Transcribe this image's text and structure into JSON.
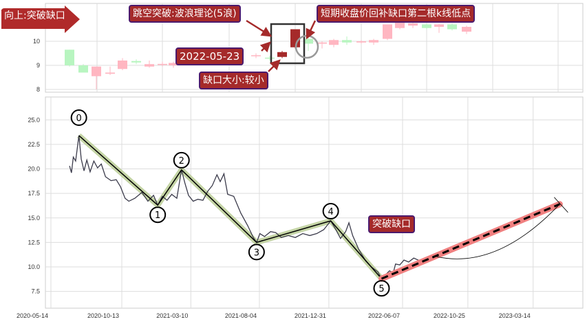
{
  "chart_data": [
    {
      "type": "candlestick",
      "ylim": [
        7.9,
        11.6
      ],
      "yticks": [
        8,
        9,
        10
      ],
      "grid": true,
      "candles": [
        {
          "o": 9.65,
          "h": 9.65,
          "l": 8.95,
          "c": 9.0
        },
        {
          "o": 9.0,
          "h": 9.05,
          "l": 8.7,
          "c": 8.7
        },
        {
          "o": 8.55,
          "h": 8.95,
          "l": 8.0,
          "c": 8.95
        },
        {
          "o": 8.65,
          "h": 8.95,
          "l": 8.6,
          "c": 8.7
        },
        {
          "o": 8.85,
          "h": 9.3,
          "l": 8.8,
          "c": 9.2
        },
        {
          "o": 9.18,
          "h": 9.25,
          "l": 9.05,
          "c": 9.12
        },
        {
          "o": 8.95,
          "h": 9.2,
          "l": 8.9,
          "c": 9.05
        },
        {
          "o": 9.05,
          "h": 9.15,
          "l": 8.95,
          "c": 9.06
        },
        {
          "o": 9.0,
          "h": 9.15,
          "l": 8.9,
          "c": 9.1
        },
        {
          "o": 9.38,
          "h": 9.5,
          "l": 9.3,
          "c": 9.42
        },
        {
          "o": 9.32,
          "h": 9.4,
          "l": 9.2,
          "c": 9.28
        },
        {
          "o": 9.35,
          "h": 9.6,
          "l": 9.3,
          "c": 9.55
        },
        {
          "o": 9.75,
          "h": 10.5,
          "l": 9.7,
          "c": 10.5
        },
        {
          "o": 10.1,
          "h": 10.2,
          "l": 9.6,
          "c": 9.9
        },
        {
          "o": 9.9,
          "h": 10.0,
          "l": 9.7,
          "c": 9.95
        },
        {
          "o": 9.85,
          "h": 10.1,
          "l": 9.75,
          "c": 10.05
        },
        {
          "o": 10.05,
          "h": 10.2,
          "l": 9.85,
          "c": 9.95
        },
        {
          "o": 9.95,
          "h": 10.05,
          "l": 9.9,
          "c": 10.0
        },
        {
          "o": 9.95,
          "h": 10.1,
          "l": 9.85,
          "c": 10.05
        },
        {
          "o": 10.1,
          "h": 10.7,
          "l": 10.05,
          "c": 10.7
        },
        {
          "o": 10.55,
          "h": 10.8,
          "l": 10.5,
          "c": 10.8
        },
        {
          "o": 10.65,
          "h": 10.8,
          "l": 10.55,
          "c": 10.75
        },
        {
          "o": 10.7,
          "h": 10.75,
          "l": 10.5,
          "c": 10.55
        },
        {
          "o": 10.6,
          "h": 10.72,
          "l": 10.35,
          "c": 10.7
        },
        {
          "o": 10.7,
          "h": 10.75,
          "l": 10.45,
          "c": 10.5
        },
        {
          "o": 10.4,
          "h": 10.65,
          "l": 10.3,
          "c": 10.6
        }
      ],
      "colors": {
        "up": "#ffb6c1",
        "down": "#b8f5c0",
        "gap": "#a52a2a"
      },
      "annotations": {
        "trend": "向上:突破缺口",
        "pattern": "跳空突破:波浪理论(5浪)",
        "refill": "短期收盘价回补缺口第二根k线低点",
        "date": "2022-05-23",
        "gap_size": "缺口大小:较小"
      }
    },
    {
      "type": "line",
      "ylim": [
        5.8,
        27.3
      ],
      "yticks": [
        "7.5",
        "10.0",
        "12.5",
        "15.0",
        "17.5",
        "20.0",
        "22.5",
        "25.0"
      ],
      "xticks": [
        "2020-05-14",
        "2020-10-13",
        "2021-03-10",
        "2021-08-04",
        "2021-12-31",
        "2022-06-07",
        "2022-10-25",
        "2023-03-14"
      ],
      "grid": true,
      "price": [
        [
          "2020-06-23",
          20.3
        ],
        [
          "2020-06-27",
          19.6
        ],
        [
          "2020-07-01",
          21.2
        ],
        [
          "2020-07-06",
          20.8
        ],
        [
          "2020-07-13",
          23.4
        ],
        [
          "2020-07-18",
          21.0
        ],
        [
          "2020-07-24",
          19.8
        ],
        [
          "2020-07-30",
          20.9
        ],
        [
          "2020-08-06",
          19.7
        ],
        [
          "2020-08-14",
          20.8
        ],
        [
          "2020-08-22",
          20.1
        ],
        [
          "2020-08-30",
          20.5
        ],
        [
          "2020-09-08",
          19.2
        ],
        [
          "2020-09-20",
          18.8
        ],
        [
          "2020-10-01",
          18.9
        ],
        [
          "2020-10-10",
          18.2
        ],
        [
          "2020-10-20",
          17.0
        ],
        [
          "2020-10-28",
          16.7
        ],
        [
          "2020-11-10",
          17.0
        ],
        [
          "2020-11-25",
          17.6
        ],
        [
          "2020-12-08",
          16.7
        ],
        [
          "2020-12-20",
          17.3
        ],
        [
          "2020-12-29",
          16.3
        ],
        [
          "2021-01-08",
          17.2
        ],
        [
          "2021-01-18",
          16.8
        ],
        [
          "2021-01-28",
          17.4
        ],
        [
          "2021-02-08",
          17.0
        ],
        [
          "2021-02-18",
          19.9
        ],
        [
          "2021-02-25",
          18.6
        ],
        [
          "2021-03-05",
          17.3
        ],
        [
          "2021-03-15",
          16.7
        ],
        [
          "2021-03-25",
          16.9
        ],
        [
          "2021-04-05",
          16.8
        ],
        [
          "2021-04-15",
          17.7
        ],
        [
          "2021-04-25",
          18.3
        ],
        [
          "2021-05-05",
          19.4
        ],
        [
          "2021-05-12",
          18.7
        ],
        [
          "2021-05-20",
          19.5
        ],
        [
          "2021-05-28",
          17.4
        ],
        [
          "2021-06-10",
          17.2
        ],
        [
          "2021-06-25",
          15.5
        ],
        [
          "2021-07-10",
          14.2
        ],
        [
          "2021-07-22",
          13.0
        ],
        [
          "2021-07-29",
          12.5
        ],
        [
          "2021-08-05",
          13.4
        ],
        [
          "2021-08-15",
          13.1
        ],
        [
          "2021-08-28",
          13.6
        ],
        [
          "2021-09-08",
          13.5
        ],
        [
          "2021-09-20",
          13.0
        ],
        [
          "2021-10-05",
          13.2
        ],
        [
          "2021-10-20",
          13.0
        ],
        [
          "2021-11-05",
          13.4
        ],
        [
          "2021-11-20",
          13.2
        ],
        [
          "2021-12-05",
          13.4
        ],
        [
          "2021-12-20",
          13.8
        ],
        [
          "2022-01-04",
          14.7
        ],
        [
          "2022-01-15",
          13.8
        ],
        [
          "2022-01-25",
          12.9
        ],
        [
          "2022-02-05",
          13.6
        ],
        [
          "2022-02-12",
          14.5
        ],
        [
          "2022-02-20",
          13.2
        ],
        [
          "2022-03-05",
          11.8
        ],
        [
          "2022-03-20",
          10.6
        ],
        [
          "2022-04-01",
          10.0
        ],
        [
          "2022-04-15",
          9.5
        ],
        [
          "2022-04-23",
          8.8
        ],
        [
          "2022-05-10",
          9.6
        ],
        [
          "2022-05-18",
          9.4
        ],
        [
          "2022-05-23",
          10.3
        ],
        [
          "2022-06-01",
          10.2
        ],
        [
          "2022-06-10",
          10.7
        ],
        [
          "2022-06-20",
          10.5
        ],
        [
          "2022-07-01",
          10.9
        ],
        [
          "2022-07-15",
          10.6
        ],
        [
          "2022-07-25",
          10.4
        ],
        [
          "2022-08-02",
          10.7
        ]
      ],
      "waves": [
        {
          "label": "0",
          "date": "2020-07-13",
          "value": 23.4
        },
        {
          "label": "1",
          "date": "2020-12-29",
          "value": 16.3
        },
        {
          "label": "2",
          "date": "2021-02-18",
          "value": 19.9
        },
        {
          "label": "3",
          "date": "2021-07-29",
          "value": 12.5
        },
        {
          "label": "4",
          "date": "2022-01-04",
          "value": 14.7
        },
        {
          "label": "5",
          "date": "2022-04-23",
          "value": 8.8
        }
      ],
      "projection": {
        "start": [
          "2022-04-23",
          8.8
        ],
        "end": [
          "2023-05-10",
          16.4
        ]
      },
      "gap_label": "突破缺口",
      "colors": {
        "price": "#3a3a4a",
        "wave_highlight": "#b5c98e",
        "projection": "#f08080"
      }
    }
  ]
}
